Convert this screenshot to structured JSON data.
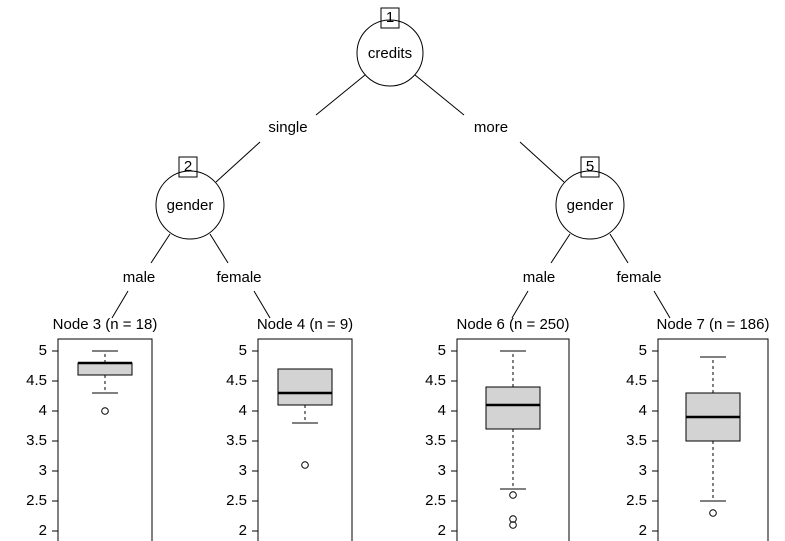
{
  "nodes": [
    {
      "id": "1",
      "label": "credits"
    },
    {
      "id": "2",
      "label": "gender"
    },
    {
      "id": "5",
      "label": "gender"
    }
  ],
  "edges": [
    "single",
    "more",
    "male",
    "female",
    "male",
    "female"
  ],
  "panels": [
    {
      "title": "Node 3 (n = 18)",
      "ylim": [
        1.8,
        5.2
      ],
      "yticks": [
        2,
        2.5,
        3,
        3.5,
        4,
        4.5,
        5
      ],
      "whisker_low": 4.3,
      "q1": 4.6,
      "median": 4.8,
      "q3": 4.8,
      "whisker_high": 5,
      "outliers": [
        4
      ]
    },
    {
      "title": "Node 4 (n = 9)",
      "ylim": [
        1.8,
        5.2
      ],
      "yticks": [
        2,
        2.5,
        3,
        3.5,
        4,
        4.5,
        5
      ],
      "whisker_low": 3.8,
      "q1": 4.1,
      "median": 4.3,
      "q3": 4.7,
      "whisker_high": 4.7,
      "outliers": [
        3.1
      ]
    },
    {
      "title": "Node 6 (n = 250)",
      "ylim": [
        1.8,
        5.2
      ],
      "yticks": [
        2,
        2.5,
        3,
        3.5,
        4,
        4.5,
        5
      ],
      "whisker_low": 2.7,
      "q1": 3.7,
      "median": 4.1,
      "q3": 4.4,
      "whisker_high": 5,
      "outliers": [
        2.6,
        2.2,
        2.1
      ]
    },
    {
      "title": "Node 7 (n = 186)",
      "ylim": [
        1.8,
        5.2
      ],
      "yticks": [
        2,
        2.5,
        3,
        3.5,
        4,
        4.5,
        5
      ],
      "whisker_low": 2.5,
      "q1": 3.5,
      "median": 3.9,
      "q3": 4.3,
      "whisker_high": 4.9,
      "outliers": [
        2.3
      ]
    }
  ]
}
